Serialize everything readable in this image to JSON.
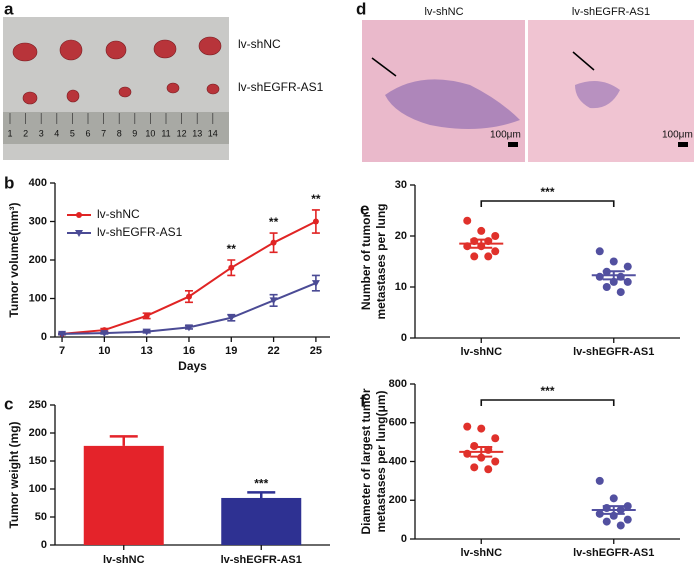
{
  "photos": {
    "panel_a": {
      "label": "a",
      "groups": [
        "lv-shNC",
        "lv-shEGFR-AS1"
      ],
      "ruler_labels": [
        1,
        2,
        3,
        4,
        5,
        6,
        7,
        8,
        9,
        10,
        11,
        12,
        13,
        14
      ]
    },
    "panel_d": {
      "label": "d",
      "groups": [
        "lv-shNC",
        "lv-shEGFR-AS1"
      ],
      "scale_labels": [
        "100μm",
        "100μm"
      ]
    }
  },
  "chart_data": [
    {
      "type": "line",
      "label": "b",
      "xlabel": "Days",
      "ylabel": "Tumor volume(mm³)",
      "x": [
        7,
        10,
        13,
        16,
        19,
        22,
        25
      ],
      "xlim": [
        6.5,
        26
      ],
      "xticks": [
        7,
        10,
        13,
        16,
        19,
        22,
        25
      ],
      "ylim": [
        0,
        400
      ],
      "yticks": [
        0,
        100,
        200,
        300,
        400
      ],
      "series": [
        {
          "name": "lv-shNC",
          "color": "#e02424",
          "marker": "circle",
          "values": [
            8,
            18,
            55,
            105,
            180,
            245,
            300
          ],
          "errors": [
            2,
            4,
            7,
            15,
            20,
            25,
            30
          ]
        },
        {
          "name": "lv-shEGFR-AS1",
          "color": "#4b4b95",
          "marker": "triangle-down",
          "values": [
            8,
            10,
            14,
            25,
            50,
            95,
            140
          ],
          "errors": [
            2,
            2,
            3,
            4,
            8,
            15,
            20
          ]
        }
      ],
      "annotations": [
        {
          "text": "**",
          "x": 19
        },
        {
          "text": "**",
          "x": 22
        },
        {
          "text": "**",
          "x": 25
        }
      ]
    },
    {
      "type": "bar",
      "label": "c",
      "ylabel": "Tumor weight (mg)",
      "categories": [
        "lv-shNC",
        "lv-shEGFR-AS1"
      ],
      "values": [
        177,
        84
      ],
      "errors": [
        17,
        10
      ],
      "colors": [
        "#e4232a",
        "#2e3192"
      ],
      "ylim": [
        0,
        250
      ],
      "yticks": [
        0,
        50,
        100,
        150,
        200,
        250
      ],
      "annotations": [
        {
          "text": "***",
          "category": 1
        }
      ]
    },
    {
      "type": "strip",
      "label": "e",
      "ylabel": [
        "Number of tumor",
        "metastases per lung"
      ],
      "categories": [
        "lv-shNC",
        "lv-shEGFR-AS1"
      ],
      "colors": [
        "#e0312b",
        "#5250a0"
      ],
      "points": [
        [
          23,
          21,
          20,
          19,
          19,
          18,
          18,
          17,
          16,
          16
        ],
        [
          17,
          15,
          14,
          13,
          12,
          12,
          11,
          11,
          10,
          9
        ]
      ],
      "means": [
        18.5,
        12.3
      ],
      "errors": [
        0.8,
        0.8
      ],
      "ylim": [
        0,
        30
      ],
      "yticks": [
        0,
        10,
        20,
        30
      ],
      "significance": "***"
    },
    {
      "type": "strip",
      "label": "f",
      "ylabel": [
        "Diameter of largest tumor",
        "metastases per lung(μm)"
      ],
      "categories": [
        "lv-shNC",
        "lv-shEGFR-AS1"
      ],
      "colors": [
        "#e0312b",
        "#5250a0"
      ],
      "points": [
        [
          580,
          570,
          520,
          480,
          460,
          440,
          420,
          400,
          370,
          360
        ],
        [
          300,
          210,
          170,
          160,
          150,
          130,
          120,
          100,
          90,
          70
        ]
      ],
      "means": [
        450,
        150
      ],
      "errors": [
        25,
        20
      ],
      "ylim": [
        0,
        800
      ],
      "yticks": [
        0,
        200,
        400,
        600,
        800
      ],
      "significance": "***"
    }
  ]
}
